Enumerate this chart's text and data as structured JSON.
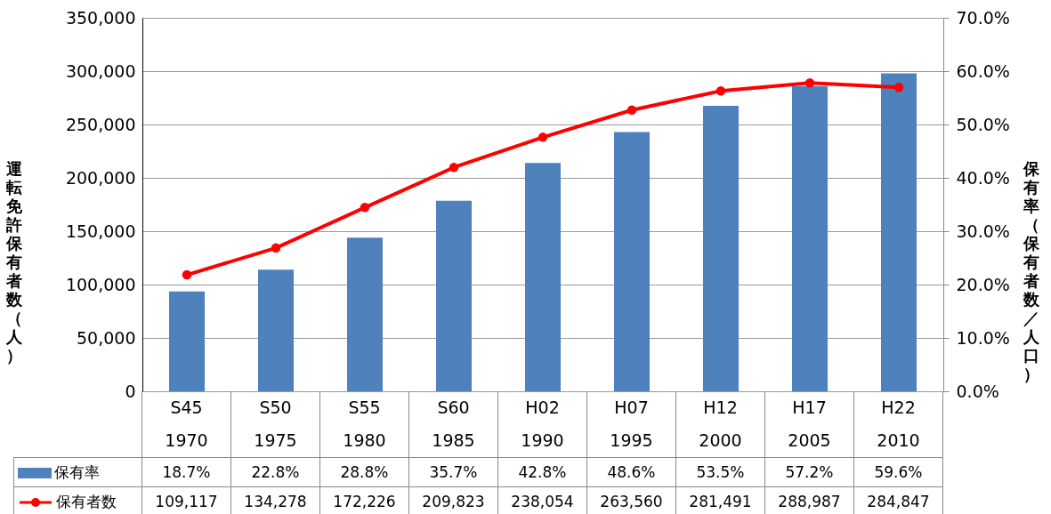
{
  "chart_data": {
    "type": "bar",
    "ylabel": "運転免許保有者数（人）",
    "y2label": "保有率（保有者数／人口）",
    "categories": [
      "S45\n1970",
      "S50\n1975",
      "S55\n1980",
      "S60\n1985",
      "H02\n1990",
      "H07\n1995",
      "H12\n2000",
      "H17\n2005",
      "H22\n2010"
    ],
    "series": [
      {
        "name": "保有率",
        "axis": "y2",
        "color": "#4f81bd",
        "values": [
          18.7,
          22.8,
          28.8,
          35.7,
          42.8,
          48.6,
          53.5,
          57.2,
          59.6
        ],
        "value_labels": [
          "18.7%",
          "22.8%",
          "28.8%",
          "35.7%",
          "42.8%",
          "48.6%",
          "53.5%",
          "57.2%",
          "59.6%"
        ]
      },
      {
        "name": "保有者数",
        "type": "line",
        "color": "#ff0000",
        "values": [
          109117,
          134278,
          172226,
          209823,
          238054,
          263560,
          281491,
          288987,
          284847
        ],
        "value_labels": [
          "109,117",
          "134,278",
          "172,226",
          "209,823",
          "238,054",
          "263,560",
          "281,491",
          "288,987",
          "284,847"
        ]
      }
    ],
    "ylim": [
      0,
      350000
    ],
    "yticks": [
      {
        "value": 0,
        "label": "0"
      },
      {
        "value": 50000,
        "label": "50,000"
      },
      {
        "value": 100000,
        "label": "100,000"
      },
      {
        "value": 150000,
        "label": "150,000"
      },
      {
        "value": 200000,
        "label": "200,000"
      },
      {
        "value": 250000,
        "label": "250,000"
      },
      {
        "value": 300000,
        "label": "300,000"
      },
      {
        "value": 350000,
        "label": "350,000"
      }
    ],
    "y2lim": [
      0,
      70
    ],
    "y2ticks": [
      {
        "value": 0,
        "label": "0.0%"
      },
      {
        "value": 10,
        "label": "10.0%"
      },
      {
        "value": 20,
        "label": "20.0%"
      },
      {
        "value": 30,
        "label": "30.0%"
      },
      {
        "value": 40,
        "label": "40.0%"
      },
      {
        "value": 50,
        "label": "50.0%"
      },
      {
        "value": 60,
        "label": "60.0%"
      },
      {
        "value": 70,
        "label": "70.0%"
      }
    ],
    "grid": "y",
    "legend": "bottom",
    "marker": "circle",
    "line_style": "solid"
  }
}
